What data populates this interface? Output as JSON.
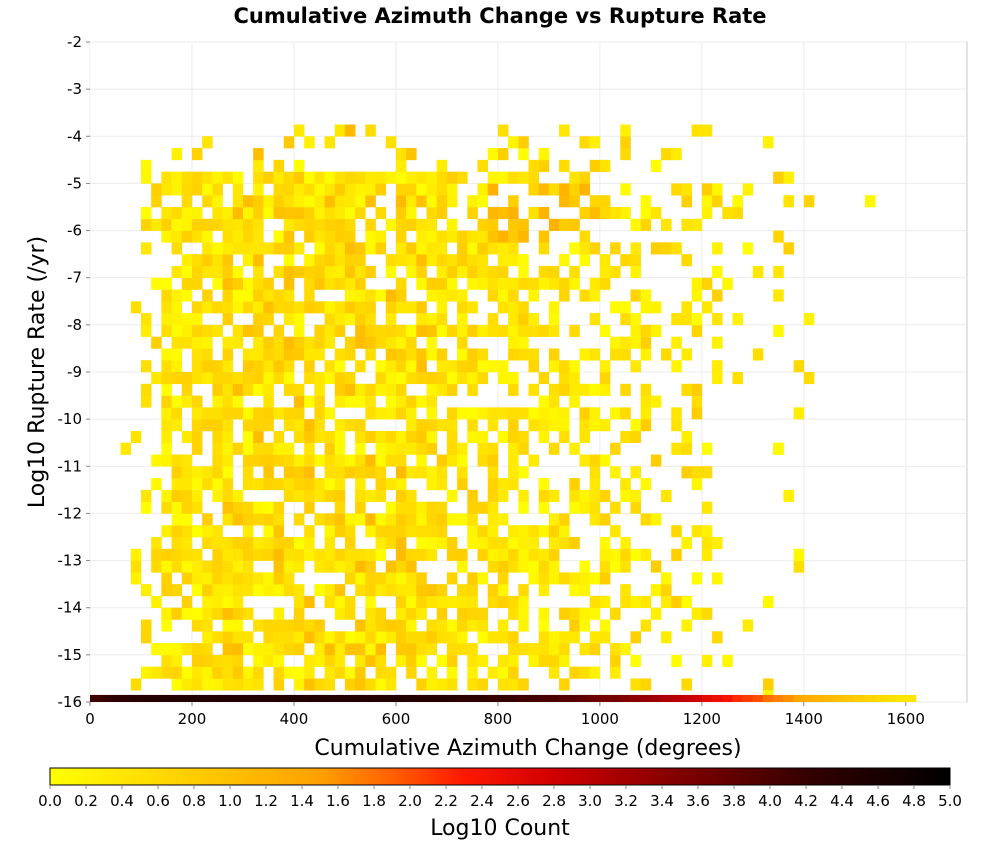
{
  "chart_data": {
    "type": "heatmap",
    "title": "Cumulative Azimuth Change vs Rupture Rate",
    "xlabel": "Cumulative Azimuth Change (degrees)",
    "ylabel": "Log10 Rupture Rate (/yr)",
    "xlim": [
      0,
      1720
    ],
    "ylim": [
      -16,
      -2
    ],
    "x_ticks": [
      "0",
      "200",
      "400",
      "600",
      "800",
      "1000",
      "1200",
      "1400",
      "1600"
    ],
    "y_ticks": [
      "-2",
      "-3",
      "-4",
      "-5",
      "-6",
      "-7",
      "-8",
      "-9",
      "-10",
      "-11",
      "-12",
      "-13",
      "-14",
      "-15",
      "-16"
    ],
    "grid": true,
    "bin_width_x": 20,
    "bin_height_y": 0.25,
    "colorbar": {
      "label": "Log10 Count",
      "range": [
        0,
        5
      ],
      "ticks": [
        "0.0",
        "0.2",
        "0.4",
        "0.6",
        "0.8",
        "1.0",
        "1.2",
        "1.4",
        "1.6",
        "1.8",
        "2.0",
        "2.2",
        "2.4",
        "2.6",
        "2.8",
        "3.0",
        "3.2",
        "3.4",
        "3.6",
        "3.8",
        "4.0",
        "4.2",
        "4.4",
        "4.6",
        "4.8",
        "5.0"
      ],
      "colors": [
        "#ffff00",
        "#ffd700",
        "#ffa500",
        "#ff6a00",
        "#ff2600",
        "#e00000",
        "#a00000",
        "#600000",
        "#200000",
        "#000000"
      ]
    },
    "bottom_row": {
      "log10_rupture_rate": -16,
      "x_start": 0,
      "x_end": 1620,
      "bin_width": 20,
      "log10_count": [
        4.1,
        4.2,
        4.3,
        4.3,
        4.4,
        4.4,
        4.4,
        4.5,
        4.5,
        4.5,
        4.5,
        4.5,
        4.5,
        4.5,
        4.5,
        4.5,
        4.5,
        4.5,
        4.5,
        4.5,
        4.5,
        4.5,
        4.5,
        4.5,
        4.5,
        4.5,
        4.5,
        4.5,
        4.5,
        4.5,
        4.5,
        4.5,
        4.4,
        4.4,
        4.4,
        4.4,
        4.3,
        4.3,
        4.3,
        4.2,
        4.2,
        4.2,
        4.1,
        4.1,
        4.0,
        4.0,
        3.9,
        3.9,
        3.8,
        3.7,
        3.6,
        3.6,
        3.5,
        3.4,
        3.3,
        3.2,
        3.1,
        3.0,
        2.9,
        2.8,
        2.6,
        2.5,
        2.4,
        2.2,
        2.1,
        2.0,
        1.8,
        1.7,
        1.6,
        1.4,
        1.3,
        1.2,
        1.1,
        1.0,
        0.9,
        0.8,
        0.7,
        0.6,
        0.5,
        0.4,
        0.4
      ]
    },
    "scatter_region": {
      "x_range": [
        60,
        1550
      ],
      "y_range": [
        -15.75,
        -4
      ],
      "log10_count_range": [
        0,
        1.2
      ],
      "note_distribution": "dense cloud centered near x=400-900, sparse toward x>1200"
    }
  }
}
